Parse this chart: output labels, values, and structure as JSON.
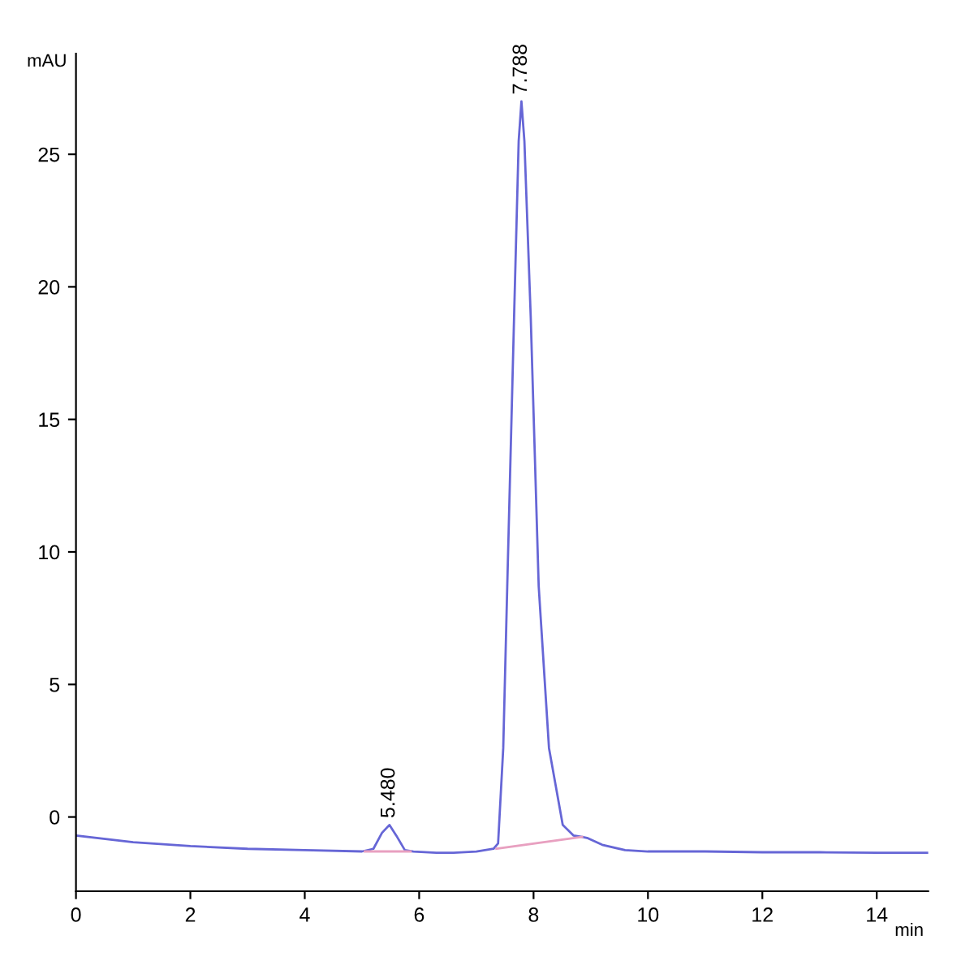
{
  "chart_data": {
    "type": "line",
    "xlabel": "min",
    "ylabel": "mAU",
    "series": [
      {
        "color": "#6666d6",
        "x": [
          0,
          1,
          2,
          3,
          4,
          5.0,
          5.2,
          5.35,
          5.48,
          5.6,
          5.75,
          5.9,
          6.3,
          6.6,
          7.0,
          7.3,
          7.38,
          7.47,
          7.54,
          7.66,
          7.74,
          7.788,
          7.84,
          7.95,
          8.09,
          8.27,
          8.51,
          8.7,
          8.85,
          8.95,
          9.2,
          9.6,
          10,
          11,
          12,
          13,
          14,
          14.9
        ],
        "values": [
          -0.7,
          -0.95,
          -1.1,
          -1.2,
          -1.25,
          -1.3,
          -1.2,
          -0.6,
          -0.3,
          -0.7,
          -1.25,
          -1.3,
          -1.35,
          -1.35,
          -1.3,
          -1.2,
          -1.0,
          2.6,
          8.7,
          18.9,
          25.5,
          27.0,
          25.5,
          18.9,
          8.7,
          2.6,
          -0.3,
          -0.7,
          -0.75,
          -0.8,
          -1.05,
          -1.25,
          -1.3,
          -1.3,
          -1.33,
          -1.33,
          -1.35,
          -1.35
        ]
      },
      {
        "color": "#e8a0c0",
        "x": [
          5.05,
          5.85
        ],
        "values": [
          -1.3,
          -1.3
        ]
      },
      {
        "color": "#e8a0c0",
        "x": [
          7.35,
          8.85
        ],
        "values": [
          -1.2,
          -0.75
        ]
      }
    ],
    "annotations": [
      {
        "text": "5.480",
        "x": 5.48,
        "y": -0.3
      },
      {
        "text": "7.788",
        "x": 7.788,
        "y": 27.0
      }
    ],
    "xlim": [
      0,
      14.9
    ],
    "ylim": [
      -2.8,
      28.8
    ],
    "xticks": [
      0,
      2,
      4,
      6,
      8,
      10,
      12,
      14
    ],
    "yticks": [
      0,
      5,
      10,
      15,
      20,
      25
    ],
    "grid": false,
    "legend": false
  }
}
